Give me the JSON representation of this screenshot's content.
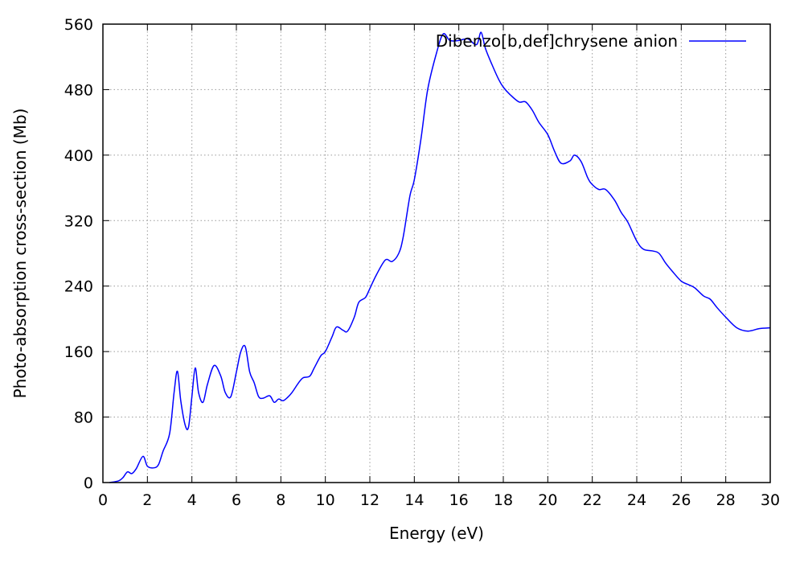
{
  "chart_data": {
    "type": "line",
    "title": "",
    "xlabel": "Energy (eV)",
    "ylabel": "Photo-absorption cross-section (Mb)",
    "xlim": [
      0,
      30
    ],
    "ylim": [
      0,
      560
    ],
    "xticks": [
      0,
      2,
      4,
      6,
      8,
      10,
      12,
      14,
      16,
      18,
      20,
      22,
      24,
      26,
      28,
      30
    ],
    "yticks": [
      0,
      80,
      160,
      240,
      320,
      400,
      480,
      560
    ],
    "grid": true,
    "legend_position": "top-right",
    "series": [
      {
        "name": "Dibenzo[b,def]chrysene anion",
        "color": "#0000ff",
        "x": [
          0.3,
          0.7,
          0.9,
          1.1,
          1.3,
          1.5,
          1.8,
          2.0,
          2.3,
          2.5,
          2.7,
          3.0,
          3.2,
          3.35,
          3.5,
          3.7,
          3.85,
          4.0,
          4.15,
          4.3,
          4.5,
          4.7,
          5.0,
          5.3,
          5.5,
          5.75,
          6.0,
          6.2,
          6.4,
          6.6,
          6.8,
          7.0,
          7.2,
          7.5,
          7.7,
          7.9,
          8.1,
          8.3,
          8.5,
          8.8,
          9.0,
          9.3,
          9.5,
          9.8,
          10.0,
          10.3,
          10.5,
          10.8,
          11.0,
          11.3,
          11.5,
          11.8,
          12.0,
          12.3,
          12.7,
          13.0,
          13.3,
          13.5,
          13.8,
          14.0,
          14.3,
          14.6,
          15.0,
          15.3,
          15.6,
          16.0,
          16.4,
          16.8,
          17.0,
          17.2,
          17.5,
          17.8,
          18.0,
          18.3,
          18.7,
          19.0,
          19.3,
          19.6,
          20.0,
          20.3,
          20.6,
          21.0,
          21.2,
          21.5,
          21.8,
          22.0,
          22.3,
          22.6,
          23.0,
          23.3,
          23.6,
          24.0,
          24.3,
          24.7,
          25.0,
          25.3,
          25.6,
          26.0,
          26.3,
          26.6,
          27.0,
          27.3,
          27.6,
          28.0,
          28.5,
          29.0,
          29.5,
          30.0
        ],
        "values": [
          0,
          2,
          6,
          13,
          11,
          17,
          32,
          20,
          18,
          22,
          38,
          60,
          110,
          136,
          100,
          70,
          68,
          105,
          140,
          110,
          98,
          120,
          143,
          130,
          110,
          105,
          135,
          160,
          166,
          135,
          122,
          105,
          103,
          106,
          98,
          102,
          100,
          104,
          110,
          122,
          128,
          130,
          140,
          155,
          160,
          178,
          190,
          186,
          185,
          202,
          220,
          226,
          237,
          254,
          272,
          270,
          280,
          300,
          350,
          370,
          420,
          480,
          525,
          548,
          540,
          540,
          542,
          535,
          550,
          530,
          510,
          492,
          483,
          474,
          465,
          465,
          455,
          440,
          425,
          405,
          390,
          393,
          400,
          392,
          372,
          364,
          358,
          358,
          345,
          330,
          318,
          295,
          285,
          283,
          280,
          268,
          258,
          246,
          242,
          238,
          228,
          224,
          214,
          202,
          189,
          185,
          188,
          189
        ]
      }
    ]
  }
}
